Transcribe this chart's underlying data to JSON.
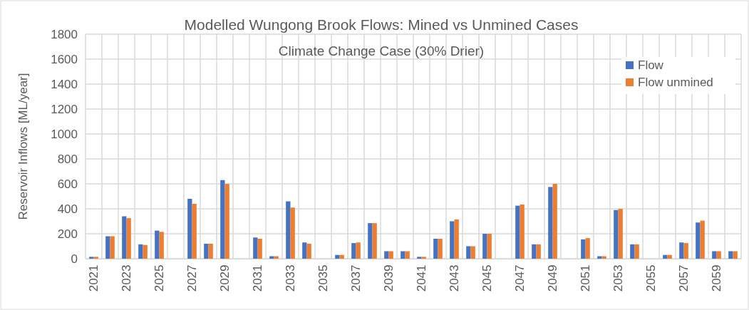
{
  "chart_data": {
    "type": "bar",
    "title": "Modelled Wungong Brook Flows: Mined vs Unmined Cases",
    "subtitle": "Climate Change Case (30% Drier)",
    "ylabel": "Reservoir Inflows [ML/year]",
    "categories": [
      "2021",
      null,
      "2023",
      null,
      "2025",
      null,
      "2027",
      null,
      "2029",
      null,
      "2031",
      null,
      "2033",
      null,
      "2035",
      null,
      "2037",
      null,
      "2039",
      null,
      "2041",
      null,
      "2043",
      null,
      "2045",
      null,
      "2047",
      null,
      "2049",
      null,
      "2051",
      null,
      "2053",
      null,
      "2055",
      null,
      "2057",
      null,
      "2059",
      null
    ],
    "series": [
      {
        "name": "Flow",
        "color": "#4472c4",
        "values": [
          15,
          180,
          340,
          115,
          225,
          0,
          480,
          120,
          630,
          0,
          170,
          20,
          460,
          130,
          0,
          30,
          125,
          285,
          60,
          60,
          15,
          160,
          300,
          100,
          200,
          0,
          425,
          115,
          575,
          0,
          155,
          20,
          390,
          115,
          0,
          30,
          130,
          290,
          60,
          60
        ]
      },
      {
        "name": "Flow unmined",
        "color": "#ed7d31",
        "values": [
          15,
          180,
          325,
          110,
          215,
          0,
          440,
          120,
          600,
          0,
          160,
          20,
          410,
          120,
          0,
          30,
          130,
          285,
          60,
          60,
          15,
          160,
          315,
          100,
          200,
          0,
          435,
          115,
          600,
          0,
          165,
          20,
          400,
          115,
          0,
          30,
          125,
          305,
          60,
          60
        ]
      }
    ],
    "ylim": [
      0,
      1800
    ],
    "yticks": [
      0,
      200,
      400,
      600,
      800,
      1000,
      1200,
      1400,
      1600,
      1800
    ],
    "grid": true,
    "legend": "top right"
  }
}
